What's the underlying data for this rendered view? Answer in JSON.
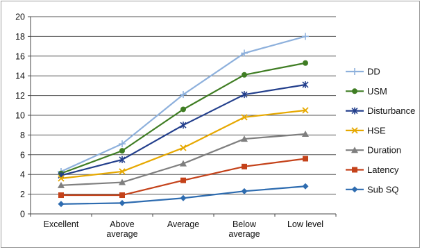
{
  "chart_data": {
    "type": "line",
    "categories": [
      [
        "Excellent"
      ],
      [
        "Above",
        "average"
      ],
      [
        "Average"
      ],
      [
        "Below",
        "average"
      ],
      [
        "Low level"
      ]
    ],
    "ylim": [
      0,
      20
    ],
    "yticks": [
      0,
      2,
      4,
      6,
      8,
      10,
      12,
      14,
      16,
      18,
      20
    ],
    "grid": true,
    "legend_position": "right",
    "series": [
      {
        "name": "DD",
        "color": "#8db0dc",
        "marker": "plus",
        "values": [
          4.3,
          7.1,
          12.1,
          16.3,
          18.0
        ]
      },
      {
        "name": "USM",
        "color": "#3f7d23",
        "marker": "circle",
        "values": [
          4.1,
          6.4,
          10.6,
          14.1,
          15.3
        ]
      },
      {
        "name": "Disturbance",
        "color": "#233f8c",
        "marker": "star",
        "values": [
          3.9,
          5.5,
          9.0,
          12.1,
          13.1
        ]
      },
      {
        "name": "HSE",
        "color": "#e6a800",
        "marker": "x",
        "values": [
          3.6,
          4.3,
          6.7,
          9.8,
          10.5
        ]
      },
      {
        "name": "Duration",
        "color": "#7f7f7f",
        "marker": "triangle",
        "values": [
          2.9,
          3.2,
          5.1,
          7.6,
          8.1
        ]
      },
      {
        "name": "Latency",
        "color": "#c4421a",
        "marker": "square",
        "values": [
          1.9,
          1.9,
          3.4,
          4.8,
          5.6
        ]
      },
      {
        "name": "Sub SQ",
        "color": "#2e6cb0",
        "marker": "diamond",
        "values": [
          1.0,
          1.1,
          1.6,
          2.3,
          2.8
        ]
      }
    ]
  }
}
